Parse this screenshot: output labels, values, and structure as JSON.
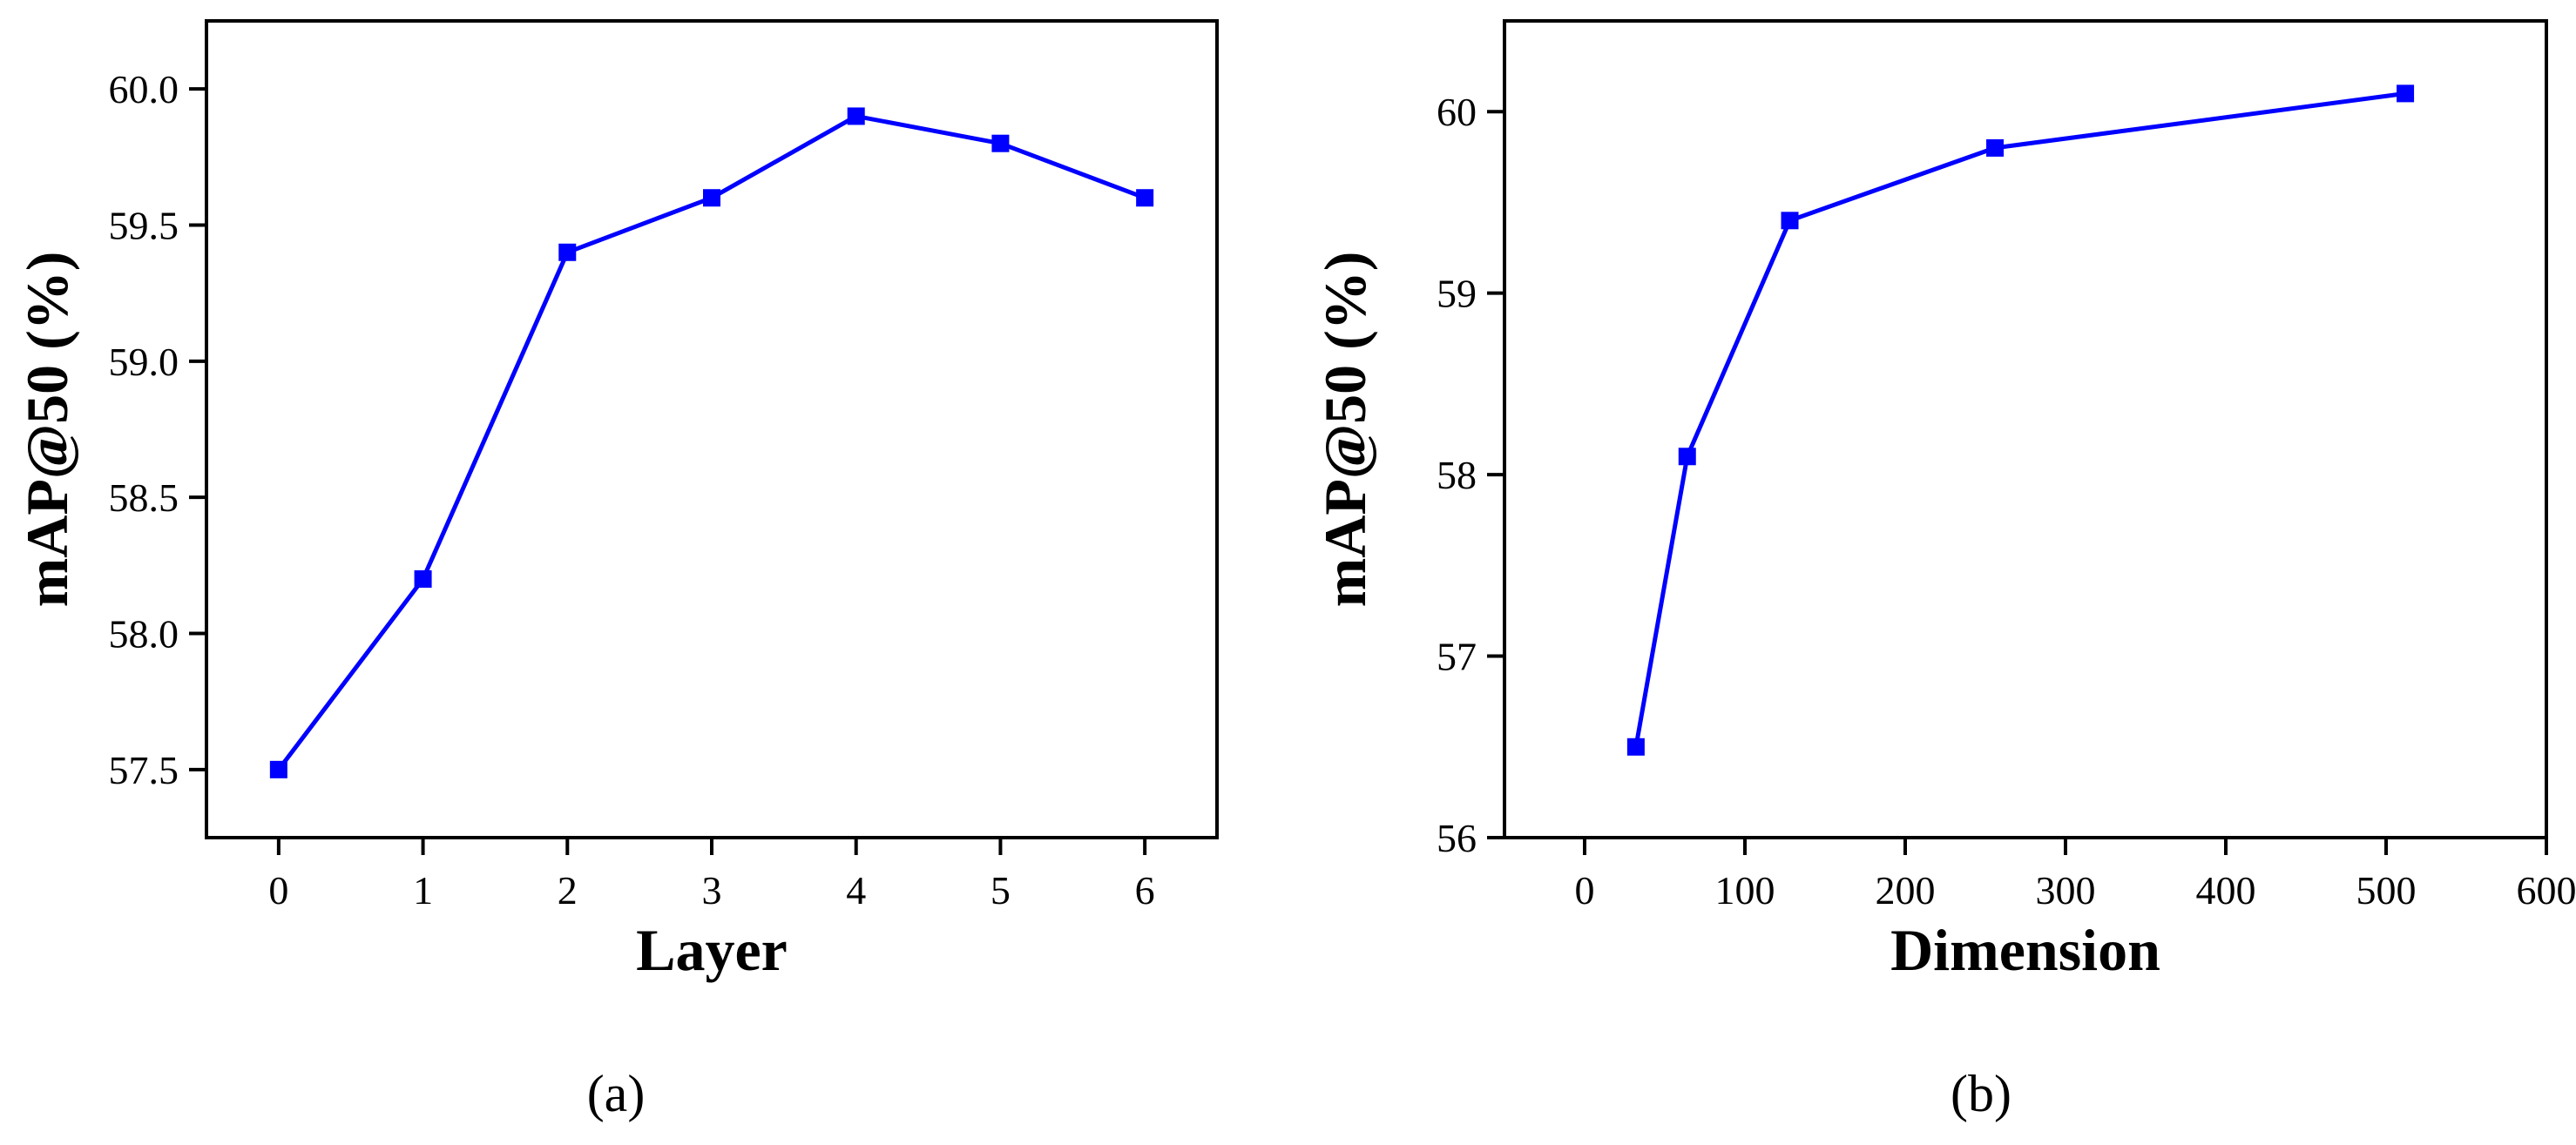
{
  "chart_data": [
    {
      "type": "line",
      "panel_label": "(a)",
      "xlabel": "Layer",
      "ylabel": "mAP@50 (%)",
      "x": [
        0,
        1,
        2,
        3,
        4,
        5,
        6
      ],
      "series": [
        {
          "values": [
            57.5,
            58.2,
            59.4,
            59.6,
            59.9,
            59.8,
            59.6
          ]
        }
      ],
      "xlim": [
        -0.5,
        6.5
      ],
      "ylim": [
        57.25,
        60.25
      ],
      "xticks": [
        0,
        1,
        2,
        3,
        4,
        5,
        6
      ],
      "xtick_labels": [
        "0",
        "1",
        "2",
        "3",
        "4",
        "5",
        "6"
      ],
      "yticks": [
        57.5,
        58.0,
        58.5,
        59.0,
        59.5,
        60.0
      ],
      "ytick_labels": [
        "57.5",
        "58.0",
        "58.5",
        "59.0",
        "59.5",
        "60.0"
      ],
      "color": "#0000ff",
      "marker": "square",
      "grid": false,
      "legend": "none"
    },
    {
      "type": "line",
      "panel_label": "(b)",
      "xlabel": "Dimension",
      "ylabel": "mAP@50 (%)",
      "x": [
        32,
        64,
        128,
        256,
        512
      ],
      "series": [
        {
          "values": [
            56.5,
            58.1,
            59.4,
            59.8,
            60.1
          ]
        }
      ],
      "xlim": [
        -50,
        600
      ],
      "ylim": [
        56,
        60.5
      ],
      "xticks": [
        0,
        100,
        200,
        300,
        400,
        500,
        600
      ],
      "xtick_labels": [
        "0",
        "100",
        "200",
        "300",
        "400",
        "500",
        "600"
      ],
      "yticks": [
        56,
        57,
        58,
        59,
        60
      ],
      "ytick_labels": [
        "56",
        "57",
        "58",
        "59",
        "60"
      ],
      "color": "#0000ff",
      "marker": "square",
      "grid": false,
      "legend": "none"
    }
  ]
}
